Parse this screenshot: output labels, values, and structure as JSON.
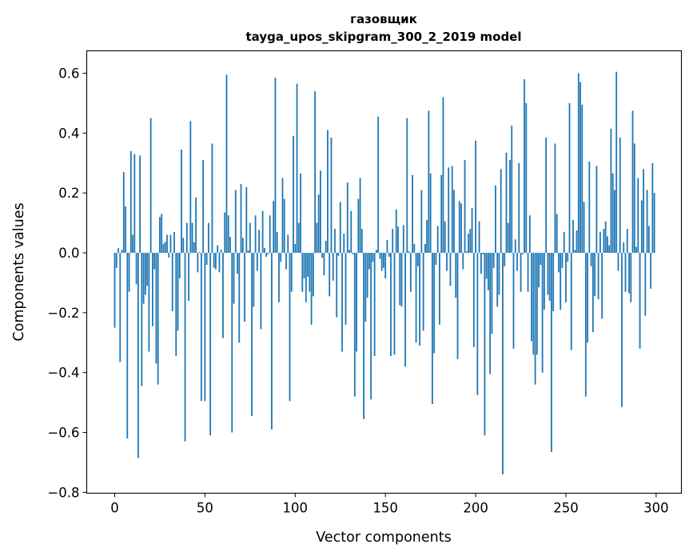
{
  "chart_data": {
    "type": "bar",
    "title": "газовщик",
    "subtitle": "tayga_upos_skipgram_300_2_2019 model",
    "xlabel": "Vector components",
    "ylabel": "Components values",
    "xlim": [
      -15.5,
      314
    ],
    "ylim": [
      -0.803,
      0.675
    ],
    "grid": false,
    "color": "#1f77b4",
    "xticks": [
      0,
      50,
      100,
      150,
      200,
      250,
      300
    ],
    "xtick_labels": [
      "0",
      "50",
      "100",
      "150",
      "200",
      "250",
      "300"
    ],
    "yticks": [
      -0.8,
      -0.6,
      -0.4,
      -0.2,
      0.0,
      0.2,
      0.4,
      0.6
    ],
    "ytick_labels": [
      "−0.8",
      "−0.6",
      "−0.4",
      "−0.2",
      "0.0",
      "0.2",
      "0.4",
      "0.6"
    ],
    "values": [
      -0.25,
      -0.05,
      0.016,
      -0.365,
      0.01,
      0.27,
      0.155,
      -0.62,
      -0.13,
      0.34,
      0.06,
      0.33,
      -0.105,
      -0.685,
      0.325,
      -0.445,
      -0.17,
      -0.14,
      -0.11,
      -0.33,
      0.45,
      -0.245,
      -0.055,
      -0.37,
      -0.44,
      0.12,
      0.13,
      0.03,
      0.037,
      0.06,
      -0.016,
      0.06,
      -0.195,
      0.07,
      -0.345,
      -0.26,
      -0.085,
      0.345,
      0.05,
      -0.63,
      0.1,
      -0.16,
      0.44,
      0.1,
      0.035,
      0.185,
      -0.065,
      0.003,
      -0.495,
      0.31,
      -0.495,
      -0.04,
      0.1,
      -0.61,
      0.365,
      -0.05,
      -0.055,
      0.025,
      -0.065,
      0.01,
      -0.285,
      0.135,
      0.595,
      0.125,
      0.053,
      -0.6,
      -0.17,
      0.21,
      -0.07,
      -0.3,
      0.23,
      0.05,
      -0.23,
      0.22,
      0.008,
      0.1,
      -0.545,
      -0.18,
      0.125,
      -0.06,
      0.077,
      -0.255,
      0.14,
      0.016,
      -0.013,
      -0.005,
      0.125,
      -0.59,
      0.173,
      0.585,
      0.07,
      -0.165,
      -0.03,
      0.25,
      0.18,
      -0.055,
      0.06,
      -0.495,
      -0.13,
      0.39,
      0.03,
      0.565,
      0.1,
      0.265,
      -0.13,
      -0.085,
      -0.165,
      -0.08,
      -0.13,
      -0.24,
      -0.145,
      0.54,
      0.1,
      0.195,
      0.275,
      -0.016,
      -0.075,
      0.04,
      0.41,
      -0.145,
      0.385,
      -0.093,
      0.08,
      -0.215,
      -0.01,
      0.17,
      -0.33,
      0.064,
      -0.24,
      0.235,
      0.01,
      0.14,
      -0.005,
      -0.48,
      -0.33,
      0.18,
      0.25,
      0.08,
      -0.555,
      -0.23,
      -0.15,
      -0.055,
      -0.49,
      -0.03,
      -0.345,
      0.01,
      0.455,
      -0.02,
      -0.06,
      -0.05,
      -0.085,
      0.043,
      -0.013,
      -0.345,
      0.08,
      -0.34,
      0.145,
      0.088,
      -0.175,
      -0.18,
      0.093,
      -0.38,
      0.45,
      0.005,
      -0.13,
      0.26,
      0.03,
      -0.3,
      -0.045,
      -0.31,
      0.21,
      -0.26,
      0.03,
      0.11,
      0.475,
      0.265,
      -0.505,
      -0.335,
      -0.04,
      0.09,
      -0.24,
      0.26,
      0.52,
      0.105,
      -0.06,
      0.285,
      -0.11,
      0.29,
      0.21,
      -0.15,
      -0.355,
      0.173,
      0.165,
      -0.055,
      0.31,
      0.005,
      0.064,
      0.08,
      0.15,
      -0.315,
      0.375,
      -0.475,
      0.105,
      -0.07,
      -0.005,
      -0.61,
      -0.087,
      -0.125,
      -0.405,
      -0.27,
      -0.05,
      0.225,
      -0.18,
      -0.14,
      0.28,
      -0.74,
      -0.045,
      0.335,
      0.1,
      0.31,
      0.425,
      -0.32,
      0.045,
      -0.06,
      0.3,
      -0.13,
      -0.005,
      0.58,
      0.5,
      -0.13,
      0.125,
      -0.295,
      -0.34,
      -0.44,
      -0.34,
      -0.115,
      -0.04,
      -0.4,
      -0.19,
      0.385,
      -0.14,
      -0.16,
      -0.665,
      -0.195,
      0.365,
      0.13,
      -0.065,
      -0.19,
      -0.05,
      0.07,
      -0.165,
      -0.03,
      0.5,
      -0.325,
      0.11,
      0.01,
      0.075,
      0.6,
      0.57,
      0.495,
      0.17,
      -0.48,
      -0.3,
      0.305,
      -0.045,
      -0.265,
      -0.145,
      0.29,
      -0.155,
      0.07,
      -0.22,
      0.08,
      0.105,
      0.055,
      0.025,
      0.415,
      0.265,
      0.21,
      0.605,
      -0.06,
      0.385,
      -0.515,
      0.035,
      -0.13,
      0.08,
      -0.135,
      -0.165,
      0.475,
      0.365,
      0.02,
      0.25,
      -0.32,
      0.175,
      0.28,
      -0.21,
      0.21,
      0.09,
      -0.12,
      0.3,
      0.2
    ]
  }
}
